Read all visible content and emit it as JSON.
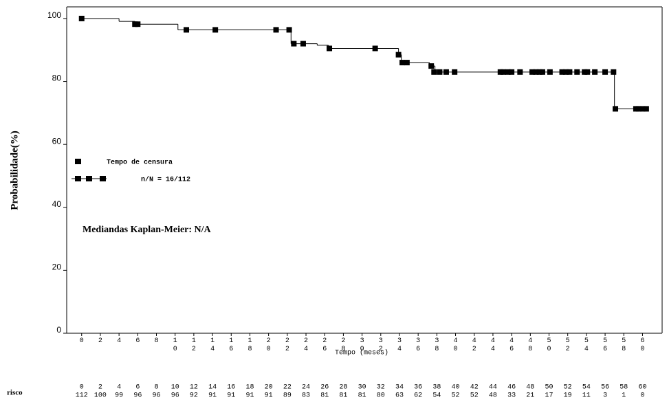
{
  "chart_data": {
    "type": "step",
    "y_label": "Probabilidade(%)",
    "x_label": "Tempo (meses)",
    "annotation": "Mediandas Kaplan-Meier: N/A",
    "xlim": [
      -1.6,
      62.1
    ],
    "ylim": [
      0,
      103.7
    ],
    "xticks": [
      0,
      2,
      4,
      6,
      8,
      10,
      12,
      14,
      16,
      18,
      20,
      22,
      24,
      26,
      28,
      30,
      32,
      34,
      36,
      38,
      40,
      42,
      44,
      46,
      48,
      50,
      52,
      54,
      56,
      58,
      60
    ],
    "yticks": [
      0,
      20,
      40,
      60,
      80,
      100
    ],
    "series": [
      {
        "name": "n/N = 16/112",
        "color": "#000000",
        "x": [
          0,
          4,
          5.7,
          10.3,
          22.4,
          25.2,
          26.4,
          33.9,
          34.2,
          37.2,
          37.8,
          57,
          60.6
        ],
        "values": [
          100,
          99.1,
          98.2,
          96.4,
          92,
          91.5,
          90.5,
          88.5,
          86,
          84.9,
          83,
          71.3,
          71.3
        ]
      },
      {
        "name": "Tempo de censura",
        "color": "#000000",
        "x": [
          0,
          5.7,
          6.0,
          11.2,
          14.3,
          20.8,
          22.2,
          22.7,
          23.7,
          26.5,
          31.4,
          33.9,
          34.3,
          34.8,
          37.4,
          37.7,
          38.3,
          39,
          39.9,
          44.8,
          45.1,
          45.6,
          46,
          46.9,
          48.2,
          48.6,
          49,
          49.3,
          50.1,
          51.4,
          51.8,
          52.2,
          53,
          53.8,
          54.1,
          54.9,
          56,
          56.9,
          57.1,
          59.3,
          59.6,
          60,
          60.4
        ],
        "values": [
          100,
          98.2,
          98.2,
          96.4,
          96.4,
          96.4,
          96.4,
          92,
          92,
          90.5,
          90.5,
          88.5,
          86,
          86,
          84.9,
          83,
          83,
          83,
          83,
          83,
          83,
          83,
          83,
          83,
          83,
          83,
          83,
          83,
          83,
          83,
          83,
          83,
          83,
          83,
          83,
          83,
          83,
          83,
          71.3,
          71.3,
          71.3,
          71.3,
          71.3
        ]
      }
    ],
    "risk_table": {
      "label": "risco",
      "times": [
        0,
        2,
        4,
        6,
        8,
        10,
        12,
        14,
        16,
        18,
        20,
        22,
        24,
        26,
        28,
        30,
        32,
        34,
        36,
        38,
        40,
        42,
        44,
        46,
        48,
        50,
        52,
        54,
        56,
        58,
        60
      ],
      "at_risk": [
        112,
        100,
        99,
        96,
        96,
        96,
        92,
        91,
        91,
        91,
        91,
        89,
        83,
        81,
        81,
        81,
        80,
        63,
        62,
        54,
        52,
        52,
        48,
        33,
        21,
        17,
        19,
        11,
        3,
        1,
        0
      ]
    }
  }
}
